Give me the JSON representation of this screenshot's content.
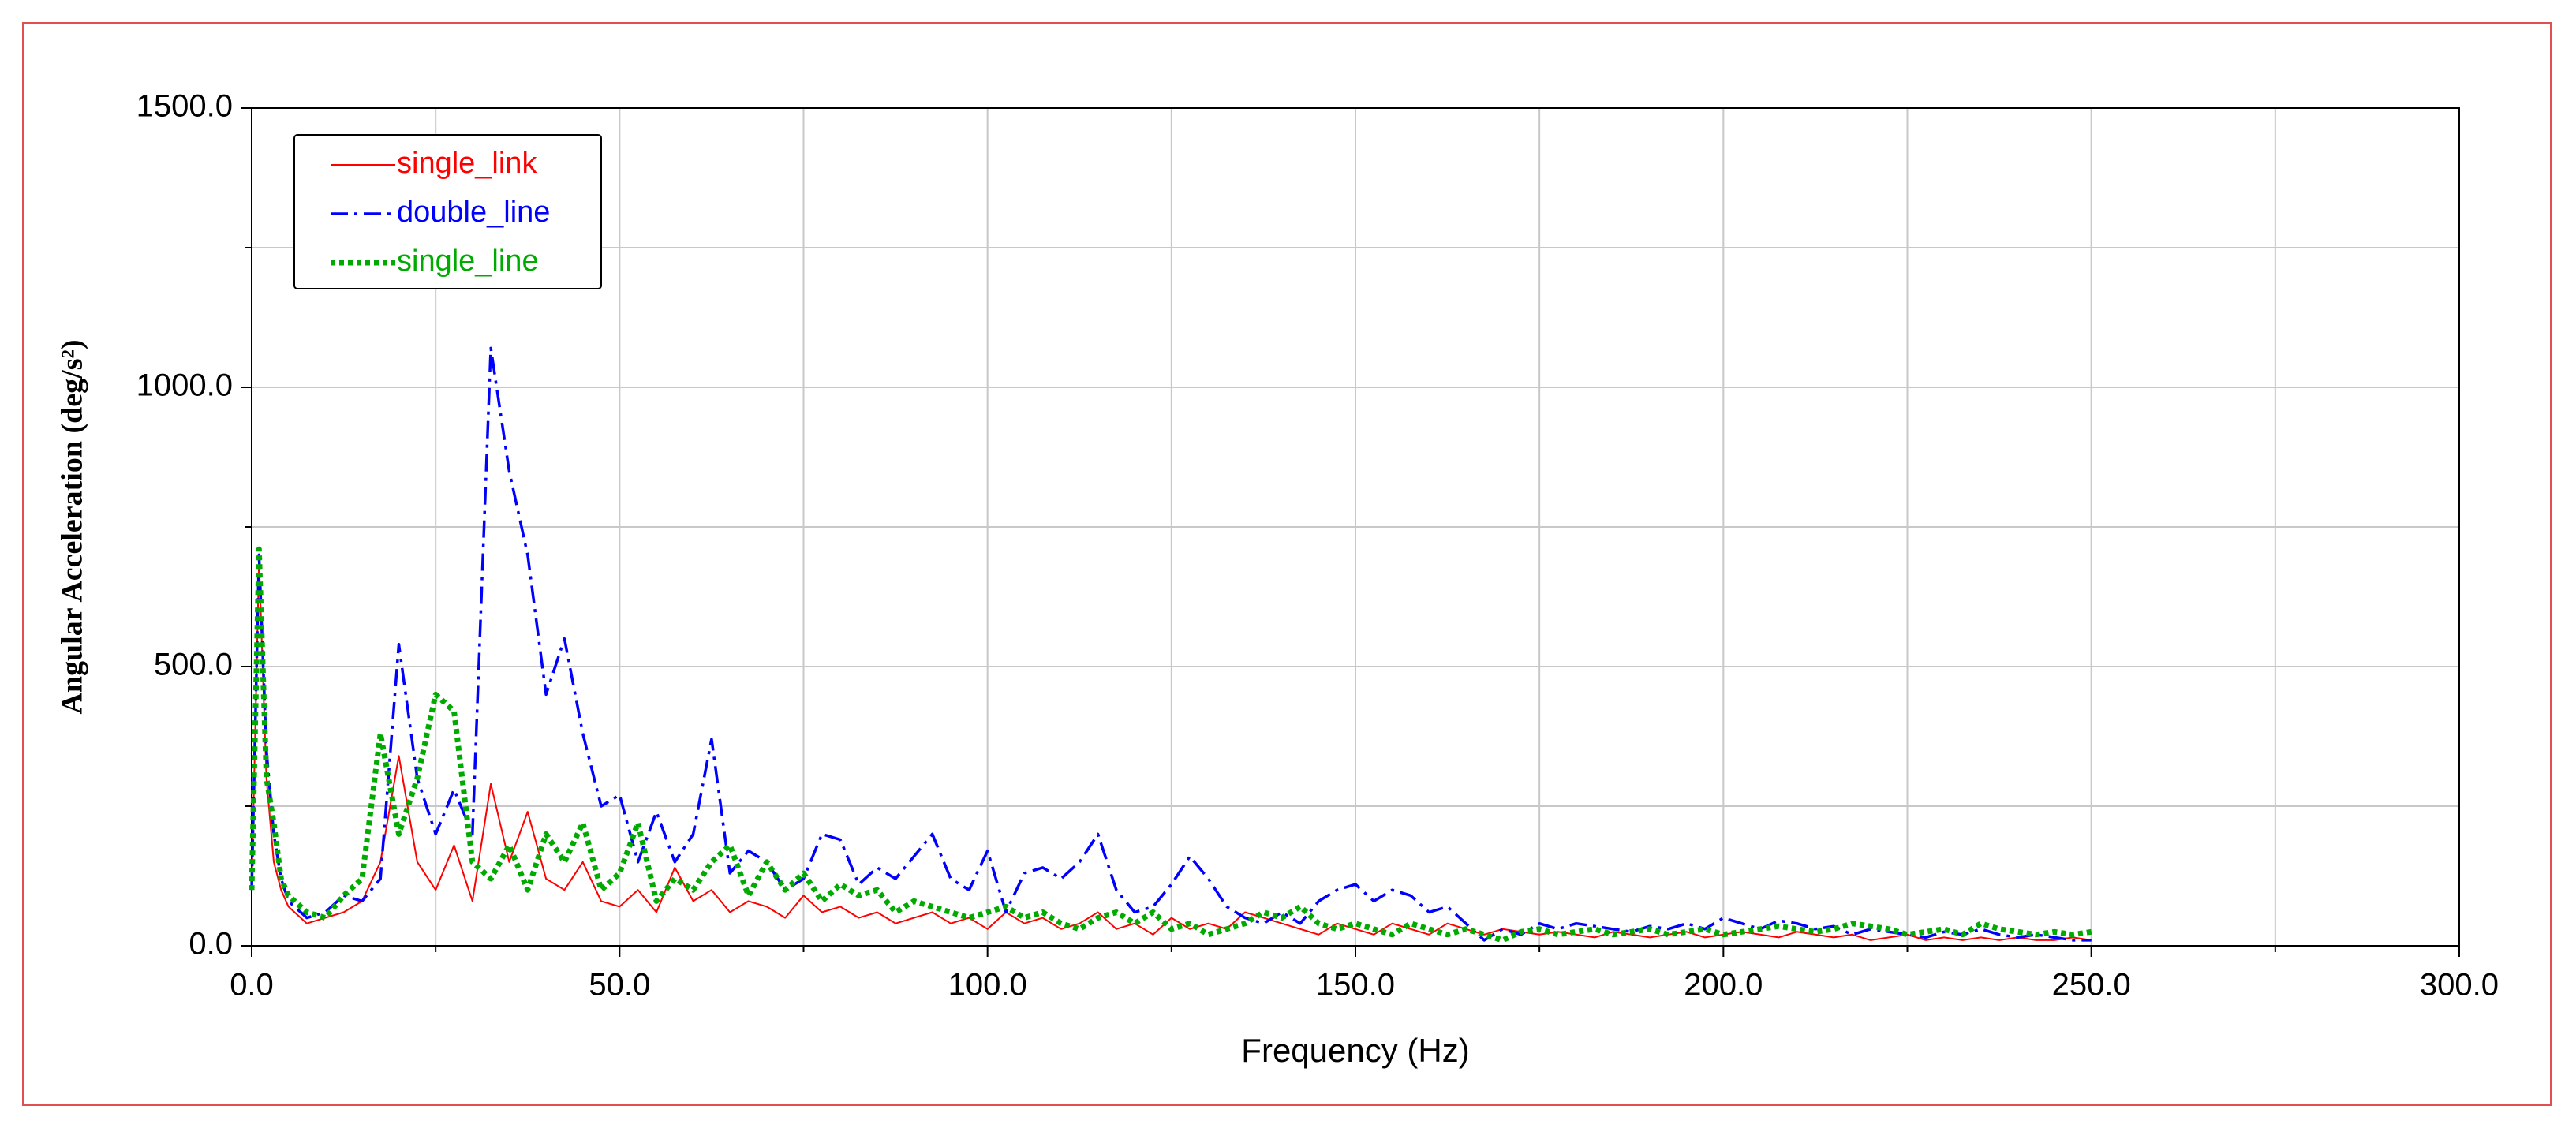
{
  "chart_data": {
    "type": "line",
    "x_label": "Frequency (Hz)",
    "y_label": "Angular Acceleration (deg/s²)",
    "xlim": [
      0,
      300
    ],
    "ylim": [
      0,
      1500
    ],
    "xticks": [
      {
        "value": 0,
        "label": "0.0"
      },
      {
        "value": 50,
        "label": "50.0"
      },
      {
        "value": 100,
        "label": "100.0"
      },
      {
        "value": 150,
        "label": "150.0"
      },
      {
        "value": 200,
        "label": "200.0"
      },
      {
        "value": 250,
        "label": "250.0"
      },
      {
        "value": 300,
        "label": "300.0"
      }
    ],
    "yticks": [
      {
        "value": 0,
        "label": "0.0"
      },
      {
        "value": 500,
        "label": "500.0"
      },
      {
        "value": 1000,
        "label": "1000.0"
      },
      {
        "value": 1500,
        "label": "1500.0"
      }
    ],
    "x_minor_ticks": [
      25,
      75,
      125,
      175,
      225,
      275
    ],
    "y_minor_ticks": [
      250,
      750,
      1250
    ],
    "grid": true,
    "legend": "upper-left",
    "x": [
      0,
      1,
      2,
      3,
      4,
      5,
      7.5,
      10,
      12.5,
      15,
      17.5,
      20,
      22.5,
      25,
      27.5,
      30,
      32.5,
      35,
      37.5,
      40,
      42.5,
      45,
      47.5,
      50,
      52.5,
      55,
      57.5,
      60,
      62.5,
      65,
      67.5,
      70,
      72.5,
      75,
      77.5,
      80,
      82.5,
      85,
      87.5,
      90,
      92.5,
      95,
      97.5,
      100,
      102.5,
      105,
      107.5,
      110,
      112.5,
      115,
      117.5,
      120,
      122.5,
      125,
      127.5,
      130,
      132.5,
      135,
      137.5,
      140,
      142.5,
      145,
      147.5,
      150,
      152.5,
      155,
      157.5,
      160,
      162.5,
      165,
      167.5,
      170,
      172.5,
      175,
      177.5,
      180,
      182.5,
      185,
      187.5,
      190,
      192.5,
      195,
      197.5,
      200,
      202.5,
      205,
      207.5,
      210,
      212.5,
      215,
      217.5,
      220,
      222.5,
      225,
      227.5,
      230,
      232.5,
      235,
      237.5,
      240,
      242.5,
      245,
      247.5,
      250
    ],
    "series": [
      {
        "name": "single_link",
        "color": "#ff0000",
        "dash": "solid",
        "values": [
          100,
          690,
          300,
          150,
          100,
          70,
          40,
          50,
          60,
          80,
          150,
          340,
          150,
          100,
          180,
          80,
          290,
          150,
          240,
          120,
          100,
          150,
          80,
          70,
          100,
          60,
          140,
          80,
          100,
          60,
          80,
          70,
          50,
          90,
          60,
          70,
          50,
          60,
          40,
          50,
          60,
          40,
          50,
          30,
          60,
          40,
          50,
          30,
          40,
          60,
          30,
          40,
          20,
          50,
          30,
          40,
          30,
          60,
          50,
          40,
          30,
          20,
          40,
          30,
          20,
          40,
          30,
          20,
          40,
          30,
          20,
          30,
          25,
          20,
          25,
          20,
          15,
          25,
          20,
          15,
          20,
          25,
          15,
          20,
          25,
          20,
          15,
          25,
          20,
          15,
          20,
          10,
          15,
          20,
          10,
          15,
          10,
          15,
          10,
          15,
          10,
          10,
          15,
          10
        ]
      },
      {
        "name": "double_line",
        "color": "#0000ff",
        "dash": "dashdot",
        "values": [
          100,
          700,
          350,
          200,
          120,
          80,
          50,
          60,
          90,
          80,
          120,
          540,
          300,
          200,
          280,
          200,
          1070,
          850,
          700,
          450,
          550,
          380,
          250,
          270,
          150,
          240,
          150,
          200,
          370,
          130,
          170,
          150,
          100,
          120,
          200,
          190,
          110,
          140,
          120,
          160,
          200,
          120,
          100,
          170,
          60,
          130,
          140,
          120,
          150,
          200,
          100,
          60,
          70,
          110,
          160,
          120,
          70,
          50,
          40,
          60,
          40,
          80,
          100,
          110,
          80,
          100,
          90,
          60,
          70,
          40,
          10,
          30,
          20,
          40,
          30,
          40,
          35,
          30,
          25,
          35,
          30,
          40,
          30,
          50,
          40,
          30,
          45,
          40,
          30,
          35,
          20,
          30,
          25,
          20,
          15,
          25,
          20,
          30,
          20,
          15,
          20,
          15,
          10,
          10
        ]
      },
      {
        "name": "single_line",
        "color": "#00aa00",
        "dash": "dotted",
        "values": [
          100,
          710,
          300,
          220,
          120,
          90,
          60,
          50,
          90,
          120,
          380,
          200,
          300,
          450,
          420,
          150,
          120,
          180,
          100,
          200,
          150,
          220,
          100,
          130,
          220,
          80,
          120,
          100,
          150,
          180,
          90,
          150,
          100,
          130,
          80,
          110,
          90,
          100,
          60,
          80,
          70,
          60,
          50,
          60,
          70,
          50,
          60,
          40,
          30,
          50,
          60,
          40,
          60,
          30,
          40,
          20,
          30,
          40,
          60,
          50,
          70,
          40,
          30,
          40,
          30,
          20,
          40,
          30,
          20,
          30,
          20,
          10,
          25,
          30,
          20,
          25,
          30,
          20,
          25,
          30,
          20,
          25,
          30,
          20,
          25,
          30,
          35,
          30,
          25,
          30,
          40,
          35,
          30,
          20,
          25,
          30,
          20,
          40,
          30,
          25,
          20,
          25,
          20,
          25
        ]
      }
    ]
  }
}
